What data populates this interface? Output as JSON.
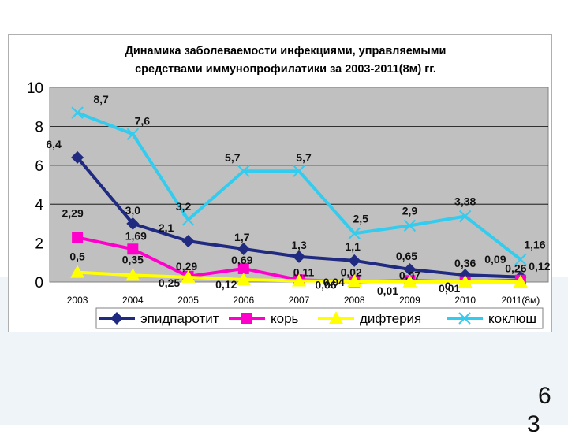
{
  "page": {
    "number_a": "6",
    "number_b": "3"
  },
  "chart_data": {
    "type": "line",
    "title_line1": "Динамика заболеваемости инфекциями, управляемыми",
    "title_line2": "средствами иммунопрофилатики за 2003-2011(8м) гг.",
    "categories": [
      "2003",
      "2004",
      "2005",
      "2006",
      "2007",
      "2008",
      "2009",
      "2010",
      "2011(8м)"
    ],
    "ylim": [
      0,
      10
    ],
    "yticks": [
      "0",
      "2",
      "4",
      "6",
      "8",
      "10"
    ],
    "grid": true,
    "legend_position": "bottom",
    "plot_background": "#c0c0c0",
    "series": [
      {
        "name": "эпидпаротит",
        "color": "#1f2a80",
        "marker": "diamond",
        "values": [
          6.4,
          3.0,
          2.1,
          1.7,
          1.3,
          1.1,
          0.65,
          0.36,
          0.26
        ],
        "labels": [
          "6,4",
          "3,0",
          "2,1",
          "1,7",
          "1,3",
          "1,1",
          "0,65",
          "0,36",
          "0,26"
        ]
      },
      {
        "name": "корь",
        "color": "#ff00cc",
        "marker": "square",
        "values": [
          2.29,
          1.69,
          0.29,
          0.69,
          0.11,
          0.02,
          0.07,
          0.01,
          0.09
        ],
        "labels": [
          "2,29",
          "1,69",
          "0,29",
          "0,69",
          "0,11",
          "0,02",
          "0,07",
          "0,01",
          "0,09"
        ]
      },
      {
        "name": "дифтерия",
        "color": "#ffff00",
        "marker": "triangle",
        "values": [
          0.5,
          0.35,
          0.25,
          0.12,
          0.06,
          0.04,
          0.01,
          0,
          0
        ],
        "labels": [
          "0,5",
          "0,35",
          "0,25",
          "0,12",
          "0,06",
          "0,04",
          "0,01",
          "0",
          ""
        ]
      },
      {
        "name": "коклюш",
        "color": "#33ccee",
        "marker": "x",
        "values": [
          8.7,
          7.6,
          3.2,
          5.7,
          5.7,
          2.5,
          2.9,
          3.38,
          1.16
        ],
        "labels": [
          "8,7",
          "7,6",
          "3,2",
          "5,7",
          "5,7",
          "2,5",
          "2,9",
          "3,38",
          "1,16"
        ]
      },
      {
        "name": "",
        "color": "#ff00cc",
        "marker": "none",
        "values": [
          null,
          null,
          null,
          null,
          null,
          null,
          null,
          null,
          0.12
        ],
        "labels": [
          "",
          "",
          "",
          "",
          "",
          "",
          "",
          "",
          "0,12"
        ]
      }
    ]
  }
}
